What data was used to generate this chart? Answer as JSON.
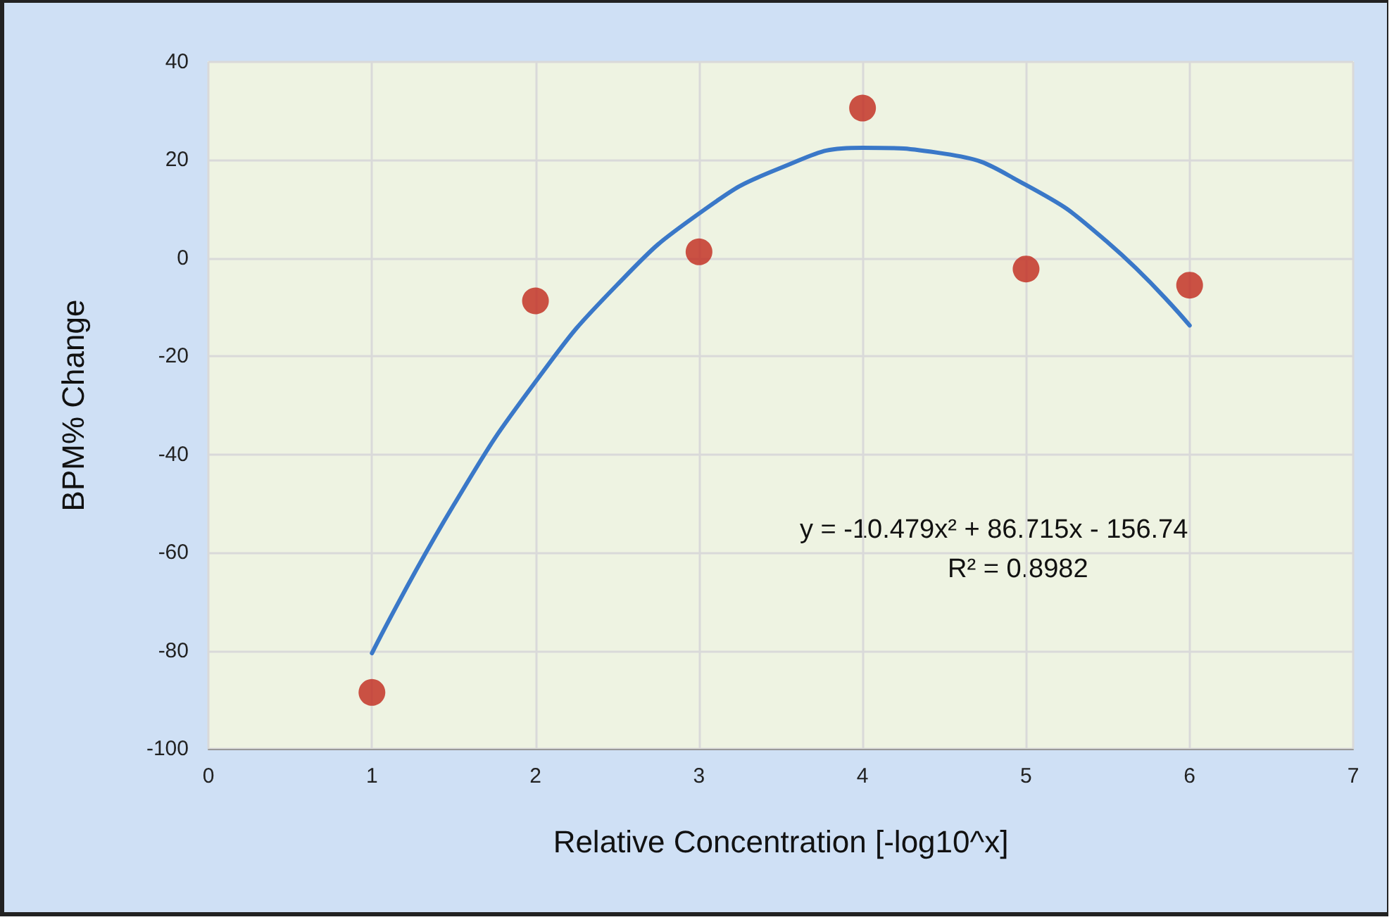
{
  "chart_data": {
    "type": "scatter",
    "xlabel": "Relative Concentration [-log10^x]",
    "ylabel": "BPM% Change",
    "xlim": [
      0,
      7
    ],
    "xticks": [
      0,
      1,
      2,
      3,
      4,
      5,
      6,
      7
    ],
    "ylim": [
      -100,
      40
    ],
    "yticks": [
      -100,
      -80,
      -60,
      -40,
      -20,
      0,
      20,
      40
    ],
    "grid": true,
    "series": [
      {
        "color": "#c0281b",
        "marker": "circle",
        "x": [
          1,
          2,
          3,
          4,
          5,
          6
        ],
        "values": [
          -88.5,
          -8.7,
          1.3,
          30.6,
          -2.2,
          -5.5
        ]
      },
      {
        "type": "line",
        "color": "#3a78c8",
        "marker": "none",
        "line_style": "solid",
        "x": [
          1,
          1.5,
          2,
          2.5,
          3,
          3.5,
          4,
          4.5,
          5,
          5.5,
          6
        ],
        "values": [
          -80.5,
          -50.3,
          -25.2,
          -5.4,
          9.1,
          18.4,
          22.5,
          21.3,
          14.9,
          3.2,
          -13.7
        ]
      }
    ],
    "annotations": [
      "y = -10.479x² + 86.715x - 156.74",
      "R² = 0.8982"
    ]
  }
}
